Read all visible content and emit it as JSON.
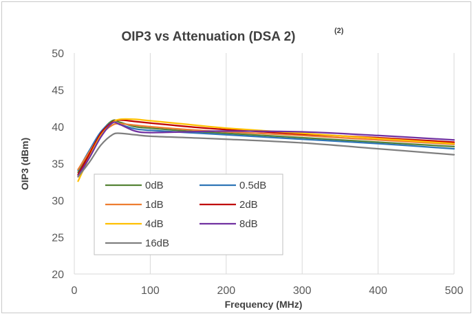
{
  "chart_data": {
    "type": "line",
    "title": "OIP3 vs Attenuation (DSA 2)",
    "title_superscript": "(2)",
    "xlabel": "Frequency (MHz)",
    "ylabel": "OIP3 (dBm)",
    "xlim": [
      0,
      500
    ],
    "ylim": [
      20,
      50
    ],
    "x_ticks": [
      "0",
      "100",
      "200",
      "300",
      "400",
      "500"
    ],
    "y_ticks": [
      "20",
      "25",
      "30",
      "35",
      "40",
      "45",
      "50"
    ],
    "grid": "vertical",
    "legend_position": "lower-left inside",
    "series": [
      {
        "name": "0dB",
        "color": "#548235",
        "x": [
          5,
          20,
          35,
          50,
          60,
          80,
          100,
          150,
          200,
          300,
          400,
          500
        ],
        "y": [
          33.8,
          36.5,
          39.2,
          40.8,
          40.6,
          40.0,
          39.8,
          39.4,
          39.1,
          38.5,
          37.9,
          37.3
        ]
      },
      {
        "name": "0.5dB",
        "color": "#2E75B6",
        "x": [
          5,
          20,
          35,
          50,
          60,
          80,
          100,
          150,
          200,
          300,
          400,
          500
        ],
        "y": [
          34.1,
          36.8,
          39.3,
          40.6,
          40.3,
          39.7,
          39.5,
          39.2,
          38.9,
          38.3,
          37.7,
          37.0
        ]
      },
      {
        "name": "1dB",
        "color": "#ED7D31",
        "x": [
          5,
          20,
          35,
          50,
          60,
          80,
          100,
          150,
          200,
          300,
          400,
          500
        ],
        "y": [
          34.2,
          36.6,
          38.9,
          40.2,
          40.4,
          40.2,
          40.0,
          39.6,
          39.3,
          38.8,
          38.2,
          37.6
        ]
      },
      {
        "name": "2dB",
        "color": "#C00000",
        "x": [
          5,
          20,
          35,
          50,
          60,
          80,
          100,
          150,
          200,
          300,
          400,
          500
        ],
        "y": [
          33.5,
          36.3,
          39.1,
          40.6,
          40.9,
          40.7,
          40.5,
          40.0,
          39.6,
          39.0,
          38.5,
          37.9
        ]
      },
      {
        "name": "4dB",
        "color": "#FFC000",
        "x": [
          5,
          20,
          35,
          50,
          60,
          80,
          100,
          150,
          200,
          300,
          400,
          500
        ],
        "y": [
          32.6,
          35.9,
          38.8,
          40.5,
          41.0,
          41.0,
          40.8,
          40.3,
          39.8,
          39.1,
          38.4,
          37.7
        ]
      },
      {
        "name": "8dB",
        "color": "#7030A0",
        "x": [
          5,
          20,
          35,
          50,
          60,
          80,
          100,
          150,
          200,
          300,
          400,
          500
        ],
        "y": [
          33.3,
          35.8,
          38.6,
          40.5,
          40.3,
          39.4,
          39.2,
          39.3,
          39.4,
          39.3,
          38.8,
          38.2
        ]
      },
      {
        "name": "16dB",
        "color": "#7F7F7F",
        "x": [
          5,
          20,
          35,
          50,
          60,
          80,
          100,
          150,
          200,
          300,
          400,
          500
        ],
        "y": [
          33.2,
          35.2,
          37.5,
          38.9,
          39.1,
          38.9,
          38.7,
          38.5,
          38.3,
          37.8,
          37.0,
          36.2
        ]
      }
    ]
  },
  "colors": {
    "grid": "#d9d9d9",
    "axis_text": "#595959",
    "frame_border": "#c8c8c8"
  }
}
